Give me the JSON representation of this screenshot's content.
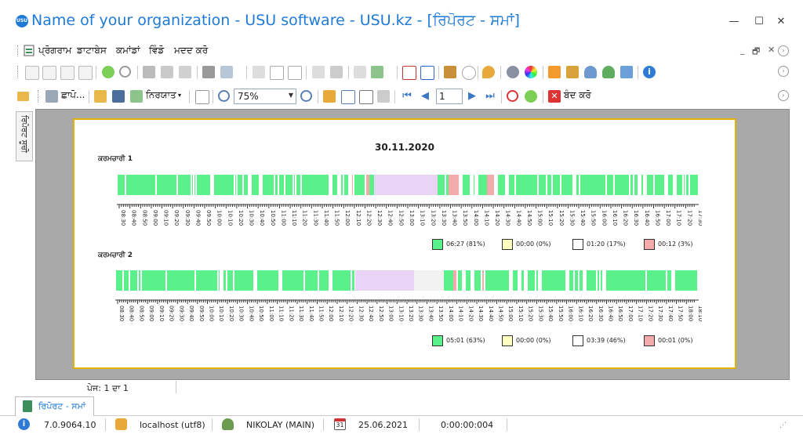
{
  "window": {
    "title": "Name of your organization - USU software - USU.kz - [ਰਿਪੋਰਟ - ਸਮਾਂ]",
    "logo_text": "USU",
    "min_glyph": "—",
    "max_glyph": "☐",
    "close_glyph": "✕",
    "mdi_glyphs": [
      "_",
      "🗗",
      "✕"
    ]
  },
  "menu": [
    "ਪ੍ਰੋਗਰਾਮ",
    "ਡਾਟਾਬੇਸ",
    "ਕਮਾਂਡਾਂ",
    "ਵਿੰਡੋ",
    "ਮਦਦ ਕਰੋ"
  ],
  "toolbar2": {
    "print_label": "ਛਾਪੋ...",
    "export_label": "ਨਿਰਯਾਤ",
    "zoom_value": "75%",
    "page_value": "1",
    "close_label": "ਬੰਦ ਕਰੋ"
  },
  "sidebar": {
    "tab_label": "ਰਿਪੋਰਟ ਸੂਚੀ"
  },
  "report": {
    "date": "30.11.2020",
    "employees": [
      {
        "name": "ਕਰਮਚਾਰੀ 1",
        "ticks": [
          "08:30",
          "08:40",
          "08:50",
          "09:00",
          "09:10",
          "09:20",
          "09:30",
          "09:40",
          "09:50",
          "10:00",
          "10:10",
          "10:20",
          "10:30",
          "10:40",
          "10:50",
          "11:00",
          "11:10",
          "11:20",
          "11:30",
          "11:40",
          "11:50",
          "12:00",
          "12:10",
          "12:20",
          "12:30",
          "12:40",
          "12:50",
          "13:00",
          "13:10",
          "13:20",
          "13:30",
          "13:40",
          "13:50",
          "14:00",
          "14:10",
          "14:20",
          "14:30",
          "14:40",
          "14:50",
          "15:00",
          "15:10",
          "15:20",
          "15:30",
          "15:40",
          "15:50",
          "16:00",
          "16:10",
          "16:20",
          "16:30",
          "16:40",
          "16:50",
          "17:00",
          "17:10",
          "17:20",
          "17:30"
        ],
        "legend": [
          "06:27 (81%)",
          "00:00 (0%)",
          "01:20 (17%)",
          "00:12 (3%)"
        ]
      },
      {
        "name": "ਕਰਮਚਾਰੀ 2",
        "ticks": [
          "08:30",
          "08:40",
          "08:50",
          "09:00",
          "09:10",
          "09:20",
          "09:30",
          "09:40",
          "09:50",
          "10:00",
          "10:10",
          "10:20",
          "10:30",
          "10:40",
          "10:50",
          "11:00",
          "11:10",
          "11:20",
          "11:30",
          "11:40",
          "11:50",
          "12:00",
          "12:10",
          "12:20",
          "12:30",
          "12:40",
          "12:50",
          "13:00",
          "13:10",
          "13:20",
          "13:30",
          "13:40",
          "13:50",
          "14:00",
          "14:10",
          "14:20",
          "14:30",
          "14:40",
          "14:50",
          "15:00",
          "15:10",
          "15:20",
          "15:30",
          "15:40",
          "15:50",
          "16:00",
          "16:10",
          "16:20",
          "16:30",
          "16:40",
          "16:50",
          "17:00",
          "17:10",
          "17:20",
          "17:30",
          "17:40",
          "17:50",
          "18:00",
          "18:10"
        ],
        "legend": [
          "05:01 (63%)",
          "00:00 (0%)",
          "03:39 (46%)",
          "00:01 (0%)"
        ]
      }
    ],
    "legend_colors": [
      "#5af08a",
      "#ffffc0",
      "#ffffff",
      "#f2aaaa"
    ],
    "colors": {
      "active": "#5af08a",
      "idle": "#e9d4f6",
      "absent": "#f2f2f2",
      "inactive": "#f2aaaa"
    }
  },
  "pageinfo": "ਪੇਜ: 1 ਦਾ 1",
  "doc_tab": "ਰਿਪੋਰਟ - ਸਮਾਂ",
  "status": {
    "version": "7.0.9064.10",
    "db": "localhost (utf8)",
    "user": "NIKOLAY (MAIN)",
    "date": "25.06.2021",
    "timer": "0:00:00:004",
    "calendar_day": "31"
  }
}
